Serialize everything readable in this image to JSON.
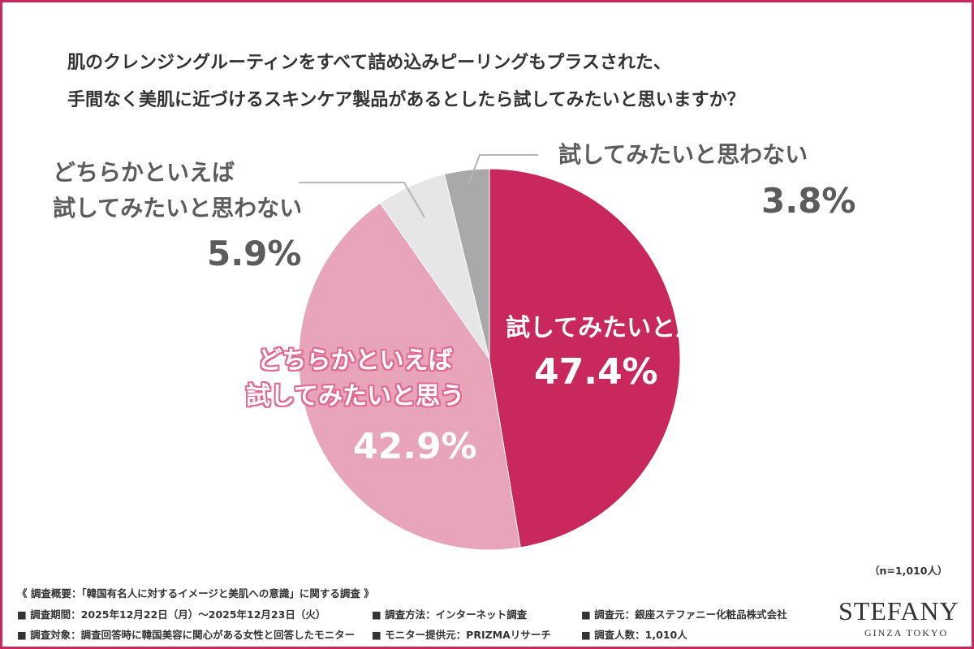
{
  "chart_data": {
    "type": "pie",
    "title": "肌のクレンジングルーティンをすべて詰め込みピーリングもプラスされた、\n手間なく美肌に近づけるスキンケア製品があるとしたら試してみたいと思いますか？",
    "categories": [
      "試してみたいと思う",
      "どちらかといえば\n試してみたいと思う",
      "どちらかといえば\n試してみたいと思わない",
      "試してみたいと思わない"
    ],
    "values": [
      47.4,
      42.9,
      5.9,
      3.8
    ],
    "value_labels": [
      "47.4%",
      "42.9%",
      "5.9%",
      "3.8%"
    ],
    "colors": [
      "#c8285c",
      "#e8a4b9",
      "#e6e6e9",
      "#a9a9ab"
    ],
    "sample_size": "（n=1,010人）"
  },
  "survey": {
    "heading": "《 調査概要：「韓国有名人に対するイメージと美肌への意識」に関する調査 》",
    "items": [
      "■ 調査期間：2025年12月22日（月）〜2025年12月23日（火）",
      "■ 調査方法：インターネット調査",
      "■ 調査元：銀座ステファニー化粧品株式会社",
      "■ 調査対象：調査回答時に韓国美容に関心がある女性と回答したモニター",
      "■ モニター提供元：PRIZMAリサーチ",
      "■ 調査人数：1,010人"
    ]
  },
  "logo": {
    "name": "STEFANY",
    "sub": "GINZA TOKYO"
  }
}
